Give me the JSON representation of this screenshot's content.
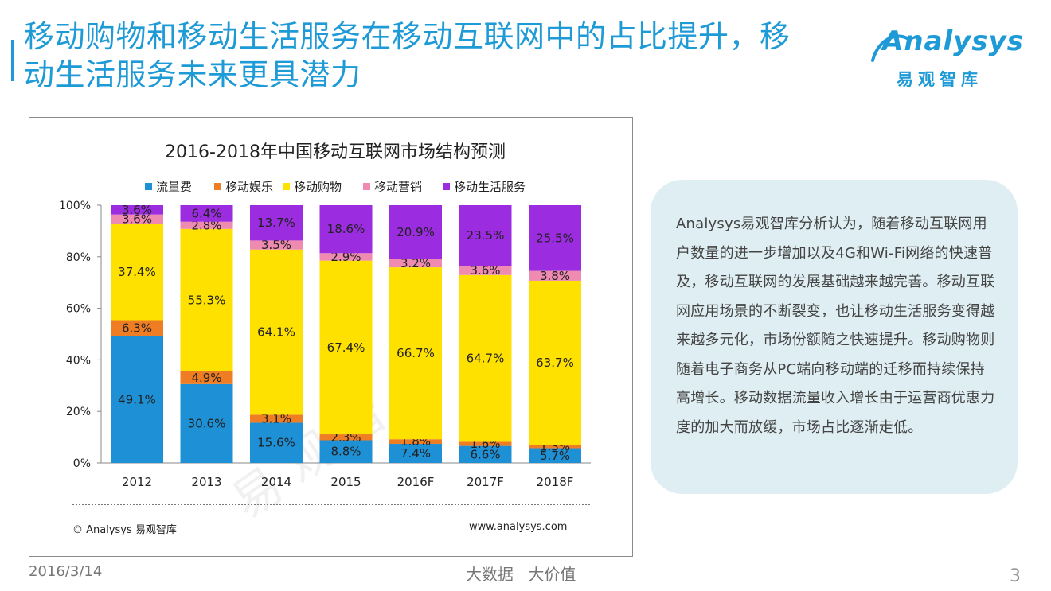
{
  "header": {
    "title": "移动购物和移动生活服务在移动互联网中的占比提升，移动生活服务未来更具潜力",
    "logo_word": "Analysys",
    "logo_cn": "易观智库"
  },
  "colors": {
    "accent": "#1e9ad6",
    "series": [
      "#1e90d6",
      "#ee7d23",
      "#ffe100",
      "#ef8ab0",
      "#9b2ce0"
    ]
  },
  "chart_data": {
    "type": "bar",
    "stacked": true,
    "title": "2016-2018年中国移动互联网市场结构预测",
    "categories": [
      "2012",
      "2013",
      "2014",
      "2015",
      "2016F",
      "2017F",
      "2018F"
    ],
    "series": [
      {
        "name": "流量费",
        "values": [
          49.1,
          30.6,
          15.6,
          8.8,
          7.4,
          6.6,
          5.7
        ],
        "labels": [
          "49.1%",
          "30.6%",
          "15.6%",
          "8.8%",
          "7.4%",
          "6.6%",
          "5.7%"
        ]
      },
      {
        "name": "移动娱乐",
        "values": [
          6.3,
          4.9,
          3.1,
          2.3,
          1.8,
          1.6,
          1.3
        ],
        "labels": [
          "6.3%",
          "4.9%",
          "3.1%",
          "2.3%",
          "1.8%",
          "1.6%",
          "1.3%"
        ]
      },
      {
        "name": "移动购物",
        "values": [
          37.4,
          55.3,
          64.1,
          67.4,
          66.7,
          64.7,
          63.7
        ],
        "labels": [
          "37.4%",
          "55.3%",
          "64.1%",
          "67.4%",
          "66.7%",
          "64.7%",
          "63.7%"
        ]
      },
      {
        "name": "移动营销",
        "values": [
          3.6,
          2.8,
          3.5,
          2.9,
          3.2,
          3.6,
          3.8
        ],
        "labels": [
          "3.6%",
          "2.8%",
          "3.5%",
          "2.9%",
          "3.2%",
          "3.6%",
          "3.8%"
        ]
      },
      {
        "name": "移动生活服务",
        "values": [
          3.6,
          6.4,
          13.7,
          18.6,
          20.9,
          23.5,
          25.5
        ],
        "labels": [
          "3.6%",
          "6.4%",
          "13.7%",
          "18.6%",
          "20.9%",
          "23.5%",
          "25.5%"
        ]
      }
    ],
    "yticks": [
      "0%",
      "20%",
      "40%",
      "60%",
      "80%",
      "100%"
    ],
    "ylim": [
      0,
      100
    ],
    "legend_position": "top",
    "watermark": "易观智库",
    "copyright": "© Analysys 易观智库",
    "website": "www.analysys.com"
  },
  "analysis": {
    "text": "Analysys易观智库分析认为，随着移动互联网用户数量的进一步增加以及4G和Wi-Fi网络的快速普及，移动互联网的发展基础越来越完善。移动互联网应用场景的不断裂变，也让移动生活服务变得越来越多元化，市场份额随之快速提升。移动购物则随着电子商务从PC端向移动端的迁移而持续保持高增长。移动数据流量收入增长由于运营商优惠力度的加大而放缓，市场占比逐渐走低。"
  },
  "footer": {
    "date": "2016/3/14",
    "slogan": "大数据 大价值",
    "page": "3"
  }
}
